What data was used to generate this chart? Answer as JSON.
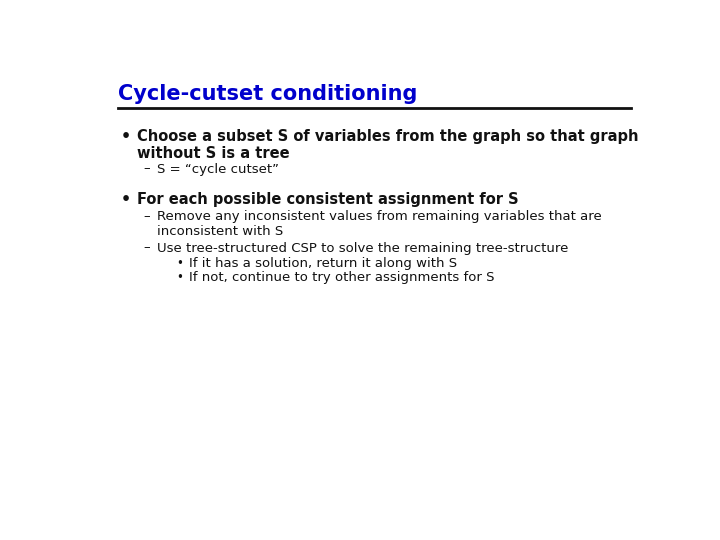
{
  "title": "Cycle-cutset conditioning",
  "title_color": "#0000cc",
  "title_fontsize": 15,
  "bg_color": "#ffffff",
  "line_color": "#111111",
  "bullet1_line1": "Choose a subset S of variables from the graph so that graph",
  "bullet1_line2": "without S is a tree",
  "sub1_text": "S = “cycle cutset”",
  "bullet2_text": "For each possible consistent assignment for S",
  "sub2a_line1": "Remove any inconsistent values from remaining variables that are",
  "sub2a_line2": "inconsistent with S",
  "sub2b_text": "Use tree-structured CSP to solve the remaining tree-structure",
  "sub2b1_text": "If it has a solution, return it along with S",
  "sub2b2_text": "If not, continue to try other assignments for S",
  "body_color": "#111111",
  "body_fontsize": 10.5,
  "sub_fontsize": 9.5
}
